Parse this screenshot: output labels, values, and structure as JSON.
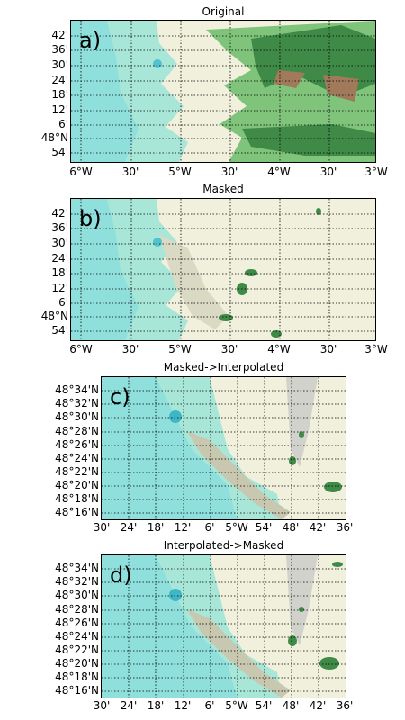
{
  "panels": [
    {
      "title": "Original",
      "label": "a)",
      "y_labels": [
        "42'",
        "36'",
        "30'",
        "24'",
        "18'",
        "12'",
        "6'",
        "48°N",
        "54'"
      ],
      "x_labels": [
        "6°W",
        "30'",
        "5°W",
        "30'",
        "4°W",
        "30'",
        "3°W"
      ],
      "variant": "original"
    },
    {
      "title": "Masked",
      "label": "b)",
      "y_labels": [
        "42'",
        "36'",
        "30'",
        "24'",
        "18'",
        "12'",
        "6'",
        "48°N",
        "54'"
      ],
      "x_labels": [
        "6°W",
        "30'",
        "5°W",
        "30'",
        "4°W",
        "30'",
        "3°W"
      ],
      "variant": "masked"
    },
    {
      "title": "Masked->Interpolated",
      "label": "c)",
      "y_labels": [
        "48°34'N",
        "48°32'N",
        "48°30'N",
        "48°28'N",
        "48°26'N",
        "48°24'N",
        "48°22'N",
        "48°20'N",
        "48°18'N",
        "48°16'N"
      ],
      "x_labels": [
        "30'",
        "24'",
        "18'",
        "12'",
        "6'",
        "5°W",
        "54'",
        "48'",
        "42'",
        "36'"
      ],
      "variant": "zoom"
    },
    {
      "title": "Interpolated->Masked",
      "label": "d)",
      "y_labels": [
        "48°34'N",
        "48°32'N",
        "48°30'N",
        "48°28'N",
        "48°26'N",
        "48°24'N",
        "48°22'N",
        "48°20'N",
        "48°18'N",
        "48°16'N"
      ],
      "x_labels": [
        "30'",
        "24'",
        "18'",
        "12'",
        "6'",
        "5°W",
        "54'",
        "48'",
        "42'",
        "36'"
      ],
      "variant": "zoom"
    }
  ],
  "colors": {
    "sea": "#8fe0dc",
    "sea_deep": "#6fd3d6",
    "land": "#f0f0dc",
    "green": "#5aa85a",
    "dark_green": "#2f6e3a",
    "brown": "#a07a5a",
    "grid": "#000000"
  }
}
